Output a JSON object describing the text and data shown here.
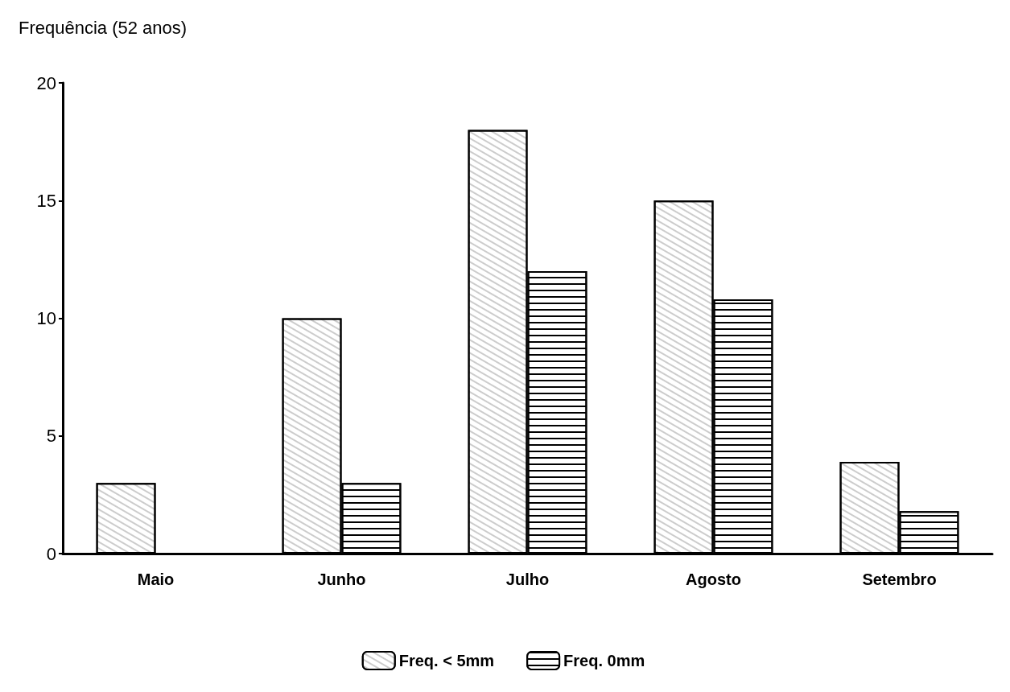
{
  "chart_data": {
    "type": "bar",
    "ylabel": "Frequência (52 anos)",
    "categories": [
      "Maio",
      "Junho",
      "Julho",
      "Agosto",
      "Setembro"
    ],
    "series": [
      {
        "name": "Freq. < 5mm",
        "color": "#ffffff",
        "values": [
          3,
          10,
          18,
          15,
          3.9
        ]
      },
      {
        "name": "Freq. 0mm",
        "color": "#000000",
        "values": [
          0,
          3,
          12,
          10.8,
          1.8
        ]
      }
    ],
    "ylim": [
      0,
      20
    ],
    "yticks": [
      0,
      5,
      10,
      15,
      20
    ],
    "grid": false,
    "legend": "bottom"
  }
}
